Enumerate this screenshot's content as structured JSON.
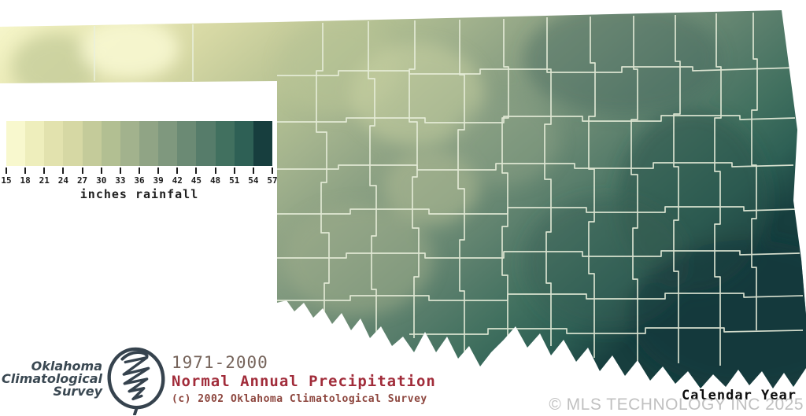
{
  "legend": {
    "unit_label": "inches rainfall",
    "tick_labels": [
      "15",
      "18",
      "21",
      "24",
      "27",
      "30",
      "33",
      "36",
      "39",
      "42",
      "45",
      "48",
      "51",
      "54",
      "57"
    ],
    "band_colors": [
      "#f8f8ce",
      "#eeeebc",
      "#e2e2ae",
      "#d6d8a4",
      "#c4cb9a",
      "#b2bf92",
      "#a2b28d",
      "#90a485",
      "#7f987e",
      "#6b8a74",
      "#567c6a",
      "#41705f",
      "#2e6055",
      "#173e3e"
    ]
  },
  "branding": {
    "org_name_lines": [
      "Oklahoma",
      "Climatological",
      "Survey"
    ],
    "logo": "scribble-circle-icon",
    "text_color": "#3a4852"
  },
  "title_block": {
    "period": "1971-2000",
    "title": "Normal Annual Precipitation",
    "copyright": "(c) 2002 Oklahoma Climatological Survey",
    "period_color": "#75635a",
    "title_color": "#a12c3a",
    "copyright_color": "#8d463e"
  },
  "footer": {
    "axis_label": "Calendar Year",
    "watermark": "© MLS TECHNOLOGY INC 2025"
  },
  "chart_data": {
    "type": "heatmap",
    "title": "Normal Annual Precipitation",
    "period": "1971-2000",
    "region": "Oklahoma counties",
    "unit": "inches rainfall",
    "scale": {
      "min": 15,
      "max": 57,
      "step": 3,
      "ticks": [
        15,
        18,
        21,
        24,
        27,
        30,
        33,
        36,
        39,
        42,
        45,
        48,
        51,
        54,
        57
      ]
    },
    "band_colors": [
      "#f8f8ce",
      "#eeeebc",
      "#e2e2ae",
      "#d6d8a4",
      "#c4cb9a",
      "#b2bf92",
      "#a2b28d",
      "#90a485",
      "#7f987e",
      "#6b8a74",
      "#567c6a",
      "#41705f",
      "#2e6055",
      "#173e3e"
    ],
    "value_pattern": "driest (~15-18 in) in far northwest panhandle, increasing southeastward to wettest (~54-57 in) in the southeast corner"
  }
}
